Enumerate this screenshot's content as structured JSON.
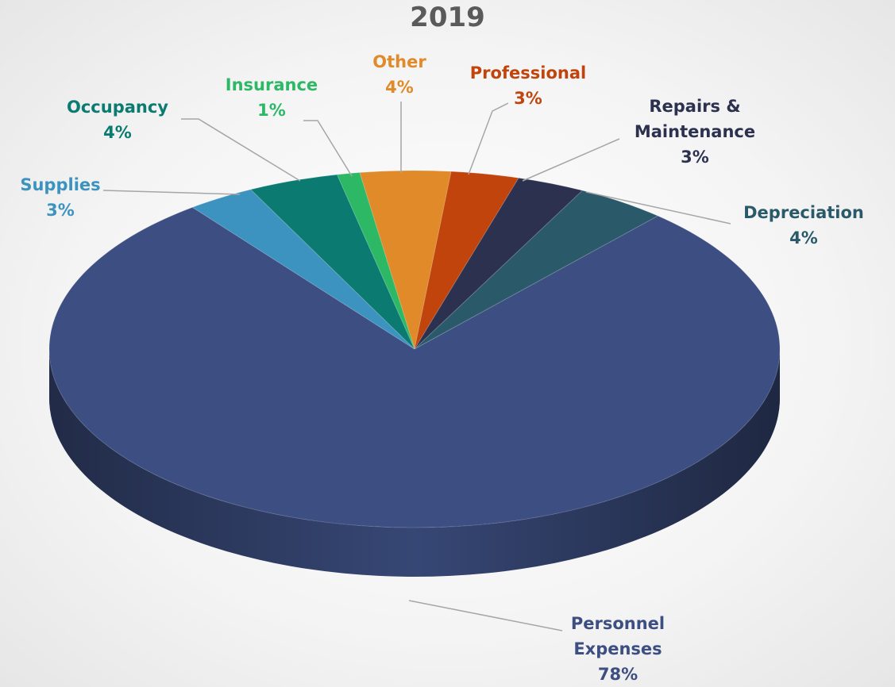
{
  "chart_data": {
    "type": "pie",
    "title": "2019",
    "categories": [
      "Other",
      "Professional",
      "Repairs & Maintenance",
      "Depreciation",
      "Personnel Expenses",
      "Supplies",
      "Occupancy",
      "Insurance"
    ],
    "values": [
      4,
      3,
      3,
      4,
      78,
      3,
      4,
      1
    ],
    "value_labels": [
      "4%",
      "3%",
      "3%",
      "4%",
      "78%",
      "3%",
      "4%",
      "1%"
    ],
    "colors": [
      "#e08a2a",
      "#c0440c",
      "#2c3150",
      "#2a5a6a",
      "#3d4f82",
      "#3d93bf",
      "#0b7b72",
      "#2db866"
    ]
  }
}
